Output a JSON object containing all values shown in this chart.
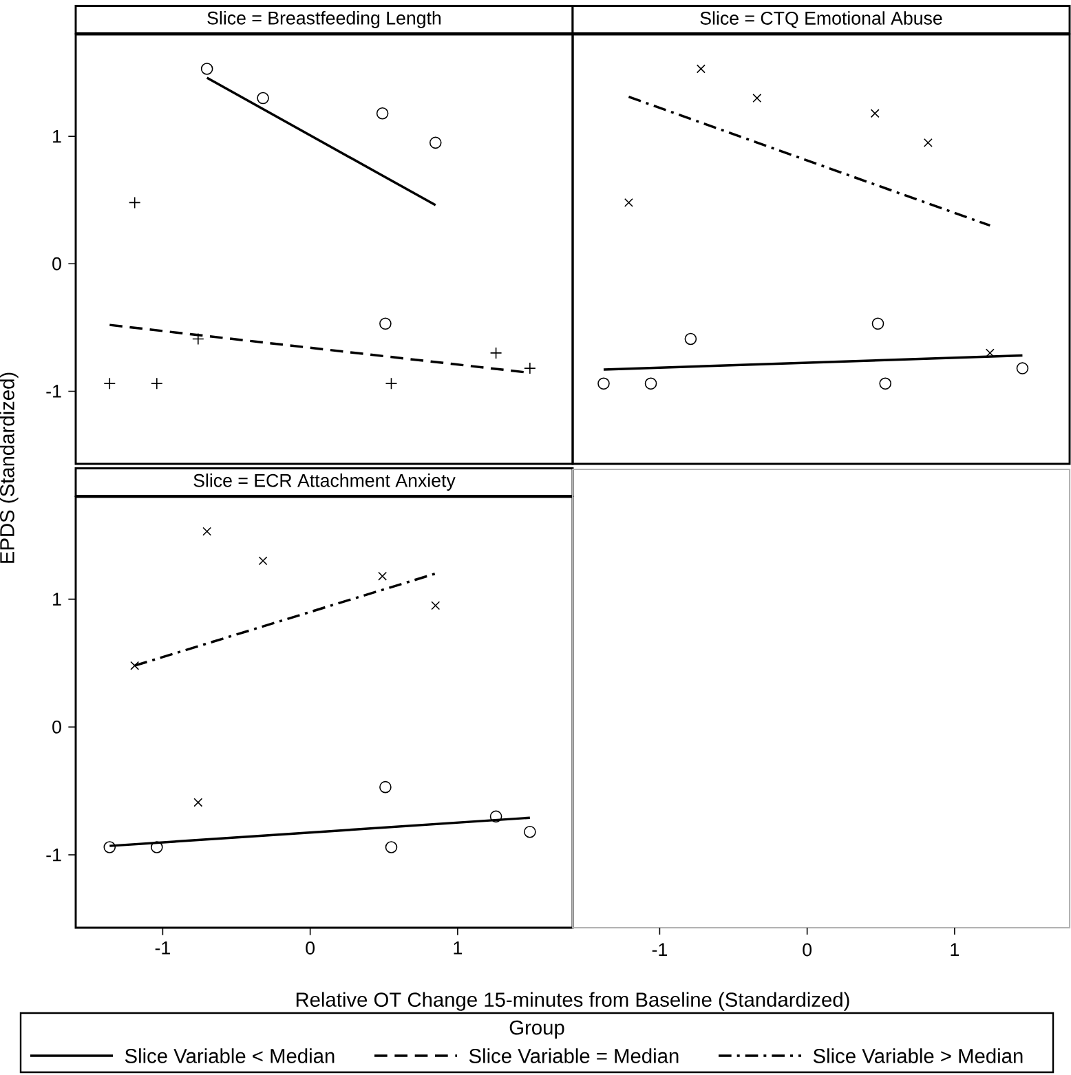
{
  "chart_data": [
    {
      "type": "scatter",
      "title": "Slice = Breastfeeding Length",
      "xlim": [
        -1.59,
        1.78
      ],
      "ylim": [
        -1.57,
        1.8
      ],
      "xticks": [
        -1,
        0,
        1
      ],
      "yticks": [
        -1,
        0,
        1
      ],
      "tick_labels": "y",
      "legend": "bottom",
      "legend_title": "Group",
      "series": [
        {
          "marker": "circle",
          "color": "#000000",
          "x": [
            -0.7,
            -0.32,
            0.49,
            0.85,
            0.51
          ],
          "values": [
            1.53,
            1.3,
            1.18,
            0.95,
            -0.47
          ]
        },
        {
          "marker": "plus",
          "color": "#000000",
          "x": [
            -1.19,
            -1.36,
            -1.04,
            -0.76,
            0.55,
            1.26,
            1.49
          ],
          "values": [
            0.48,
            -0.94,
            -0.94,
            -0.59,
            -0.94,
            -0.7,
            -0.82
          ]
        },
        {
          "type": "line",
          "name": "Slice Variable < Median",
          "line_style": "solid",
          "color": "#000000",
          "x": [
            -0.7,
            0.85
          ],
          "values": [
            1.46,
            0.46
          ]
        },
        {
          "type": "line",
          "name": "Slice Variable = Median",
          "line_style": "dashed",
          "color": "#000000",
          "x": [
            -1.36,
            1.45
          ],
          "values": [
            -0.48,
            -0.85
          ]
        }
      ]
    },
    {
      "type": "scatter",
      "title": "Slice = CTQ Emotional Abuse",
      "xlim": [
        -1.59,
        1.78
      ],
      "ylim": [
        -1.57,
        1.8
      ],
      "xticks": [
        -1,
        0,
        1
      ],
      "yticks": [
        -1,
        0,
        1
      ],
      "tick_labels": false,
      "legend": "bottom",
      "series": [
        {
          "marker": "circle",
          "color": "#000000",
          "x": [
            -1.38,
            -1.06,
            -0.79,
            0.48,
            0.53,
            1.46
          ],
          "values": [
            -0.94,
            -0.94,
            -0.59,
            -0.47,
            -0.94,
            -0.82
          ]
        },
        {
          "marker": "cross",
          "color": "#000000",
          "x": [
            -1.21,
            -0.72,
            -0.34,
            0.46,
            0.82,
            1.24
          ],
          "values": [
            0.48,
            1.53,
            1.3,
            1.18,
            0.95,
            -0.7
          ]
        },
        {
          "type": "line",
          "line_style": "solid",
          "color": "#000000",
          "x": [
            -1.38,
            1.46
          ],
          "values": [
            -0.83,
            -0.72
          ]
        },
        {
          "type": "line",
          "name": "Slice Variable > Median",
          "line_style": "dashdot",
          "color": "#000000",
          "x": [
            -1.21,
            1.24
          ],
          "values": [
            1.31,
            0.3
          ]
        }
      ]
    },
    {
      "type": "scatter",
      "title": "Slice = ECR Attachment Anxiety",
      "xlabel": "Relative OT Change 15-minutes from Baseline (Standardized)",
      "ylabel": "EPDS (Standardized)",
      "xlim": [
        -1.59,
        1.78
      ],
      "ylim": [
        -1.57,
        1.8
      ],
      "xticks": [
        -1,
        0,
        1
      ],
      "yticks": [
        -1,
        0,
        1
      ],
      "series": [
        {
          "marker": "cross",
          "color": "#000000",
          "x": [
            -0.7,
            -0.32,
            0.49,
            0.85,
            -1.19,
            -0.76
          ],
          "values": [
            1.53,
            1.3,
            1.18,
            0.95,
            0.48,
            -0.59
          ]
        },
        {
          "marker": "circle",
          "color": "#000000",
          "x": [
            -1.36,
            -1.04,
            0.51,
            0.55,
            1.26,
            1.49
          ],
          "values": [
            -0.94,
            -0.94,
            -0.47,
            -0.94,
            -0.7,
            -0.82
          ]
        },
        {
          "type": "line",
          "line_style": "solid",
          "color": "#000000",
          "x": [
            -1.36,
            1.49
          ],
          "values": [
            -0.93,
            -0.71
          ]
        },
        {
          "type": "line",
          "line_style": "dashdot",
          "color": "#000000",
          "x": [
            -1.19,
            0.85
          ],
          "values": [
            0.48,
            1.2
          ]
        }
      ]
    },
    {
      "type": "other",
      "annotations": [
        "-1",
        "0",
        "1"
      ]
    }
  ]
}
